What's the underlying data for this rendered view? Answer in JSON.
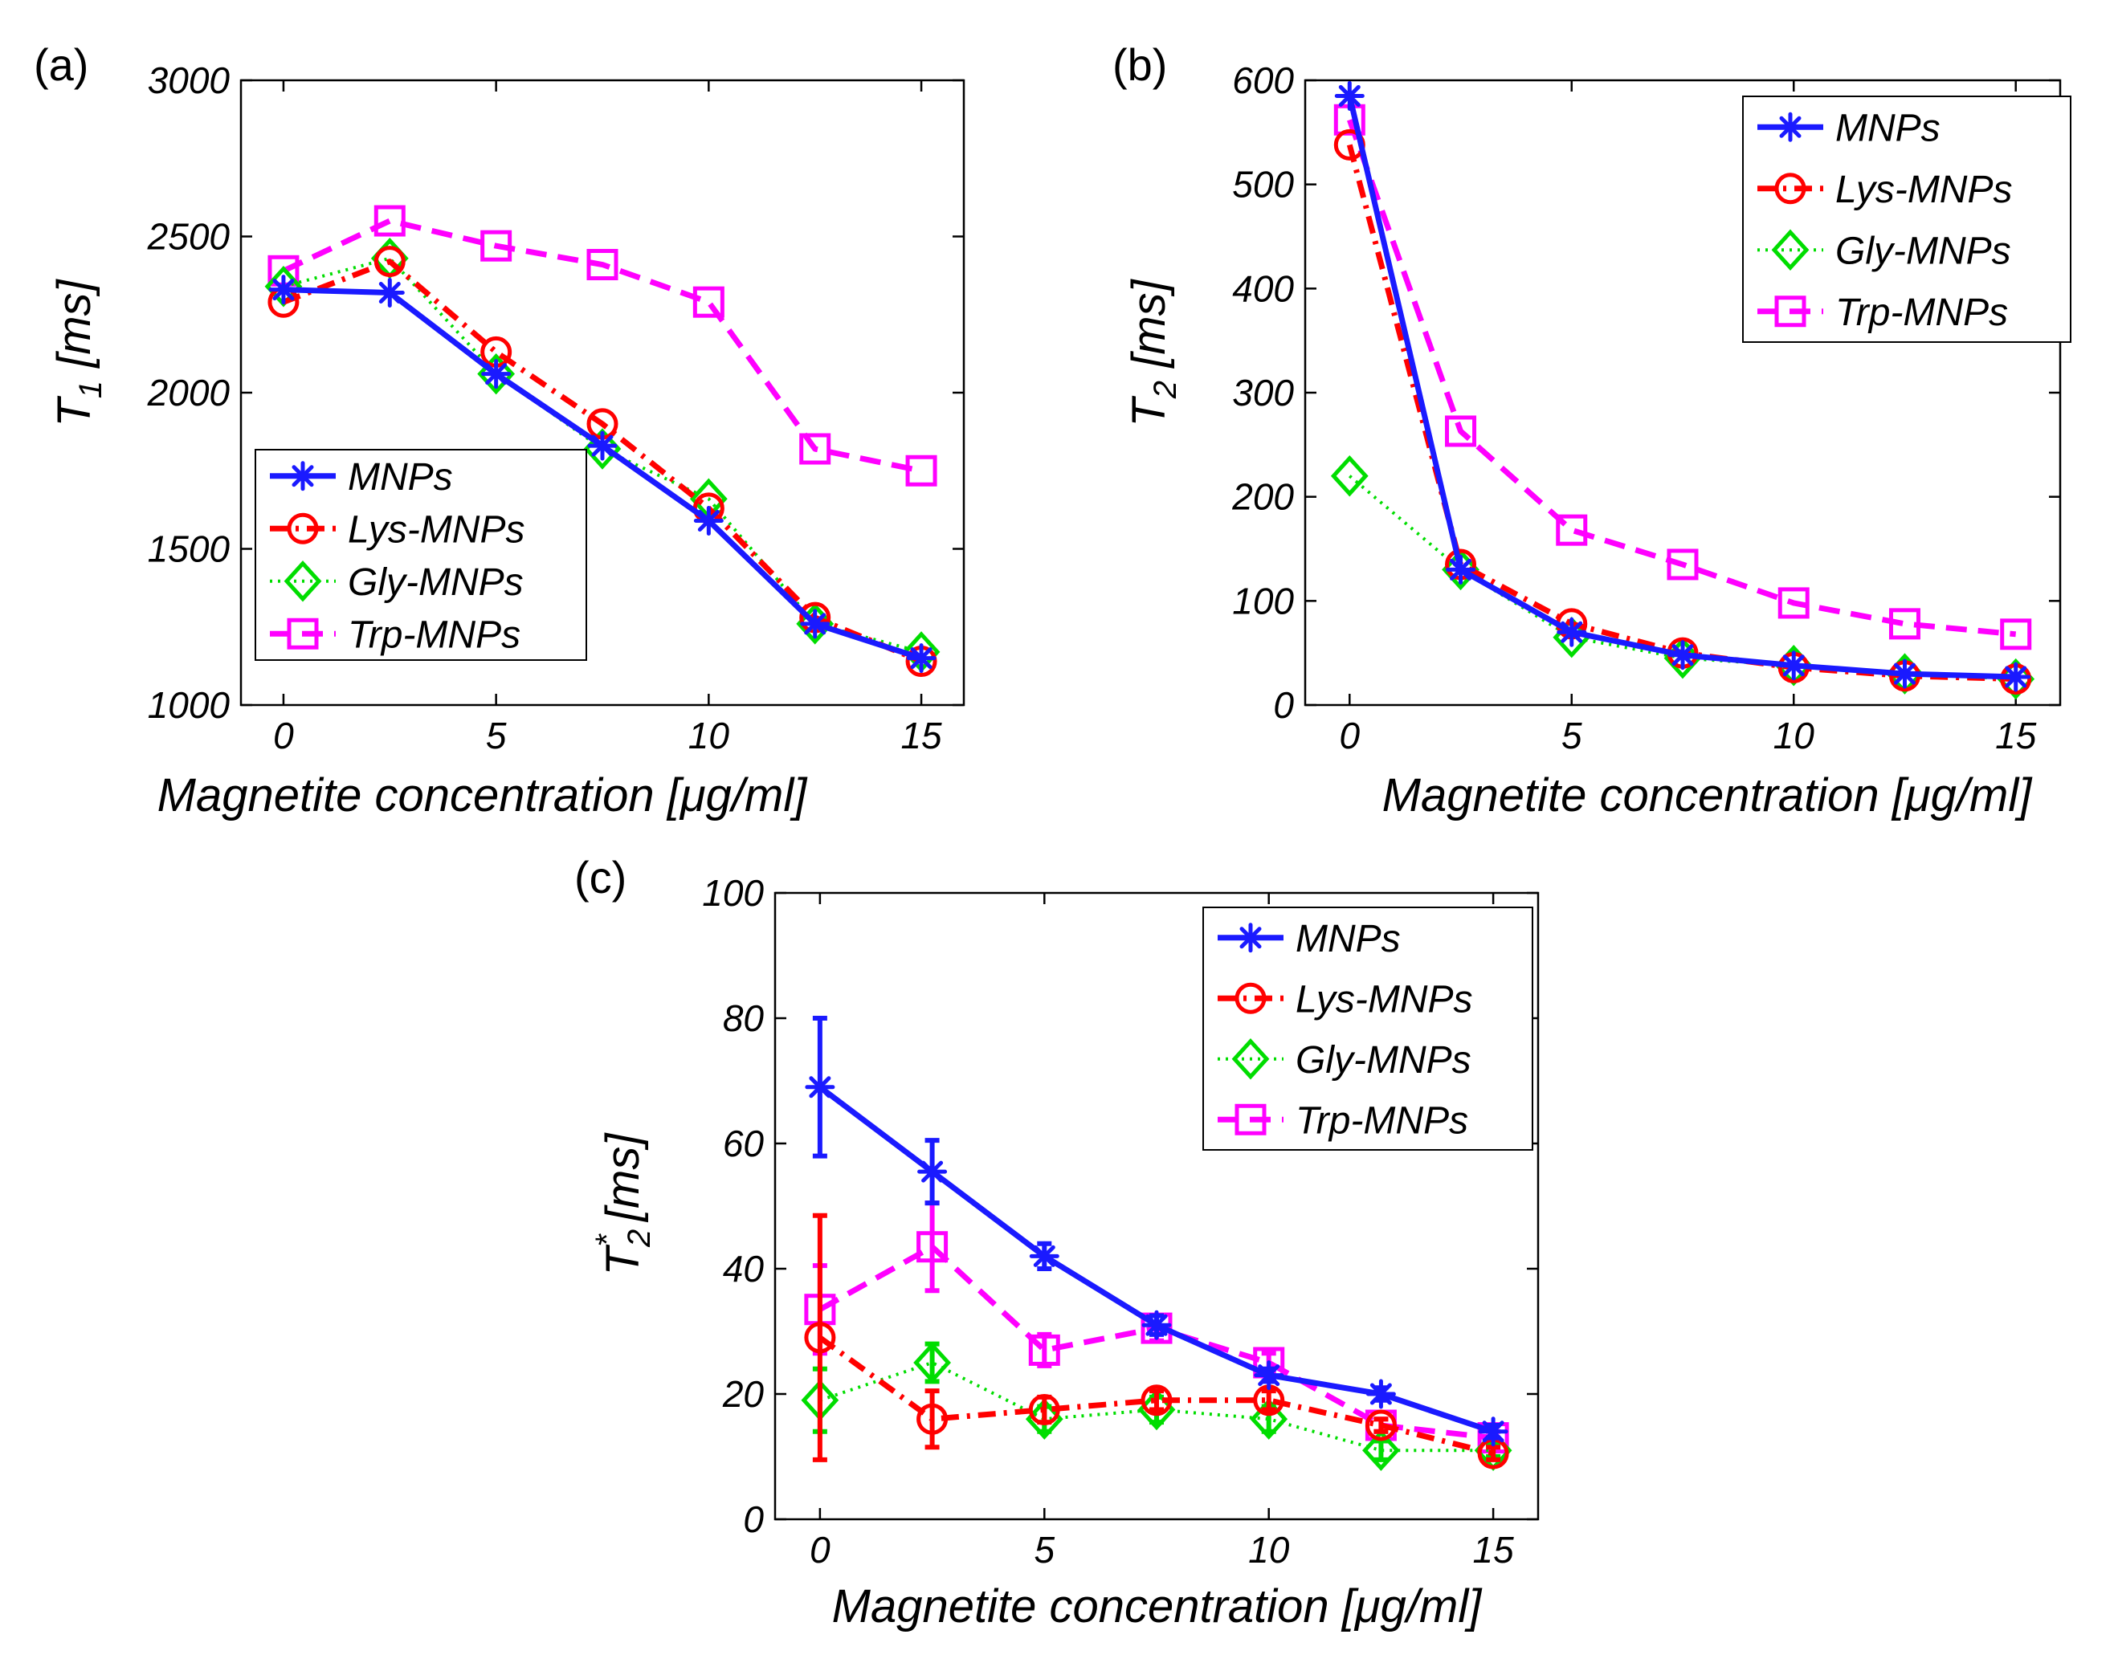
{
  "colors": {
    "MNPs": "#1a1aff",
    "Lys-MNPs": "#ff0000",
    "Gly-MNPs": "#00dd00",
    "Trp-MNPs": "#ff00ff"
  },
  "chart_data": [
    {
      "panel": "(a)",
      "type": "line",
      "xlabel": "Magnetite concentration [μg/ml]",
      "ylabel_main": "T",
      "ylabel_sub": "1",
      "ylabel_sup": "",
      "ylabel_unit": "[ms]",
      "xlim": [
        -1,
        16
      ],
      "ylim": [
        1000,
        3000
      ],
      "xticks": [
        0,
        5,
        10,
        15
      ],
      "yticks": [
        1000,
        1500,
        2000,
        2500,
        3000
      ],
      "legend_position": "bottom-left",
      "x": [
        0,
        2.5,
        5,
        7.5,
        10,
        12.5,
        15
      ],
      "series": [
        {
          "name": "MNPs",
          "marker": "asterisk",
          "values": [
            2330,
            2320,
            2060,
            1830,
            1590,
            1260,
            1150
          ]
        },
        {
          "name": "Lys-MNPs",
          "marker": "circle",
          "values": [
            2290,
            2420,
            2130,
            1900,
            1630,
            1280,
            1140
          ]
        },
        {
          "name": "Gly-MNPs",
          "marker": "diamond",
          "values": [
            2340,
            2430,
            2060,
            1820,
            1660,
            1260,
            1170
          ]
        },
        {
          "name": "Trp-MNPs",
          "marker": "square",
          "values": [
            2390,
            2550,
            2470,
            2410,
            2290,
            1820,
            1750
          ]
        }
      ]
    },
    {
      "panel": "(b)",
      "type": "line",
      "xlabel": "Magnetite concentration [μg/ml]",
      "ylabel_main": "T",
      "ylabel_sub": "2",
      "ylabel_sup": "",
      "ylabel_unit": "[ms]",
      "xlim": [
        -1,
        16
      ],
      "ylim": [
        0,
        600
      ],
      "xticks": [
        0,
        5,
        10,
        15
      ],
      "yticks": [
        0,
        100,
        200,
        300,
        400,
        500,
        600
      ],
      "legend_position": "top-right",
      "x": [
        0,
        2.5,
        5,
        7.5,
        10,
        12.5,
        15
      ],
      "series": [
        {
          "name": "MNPs",
          "marker": "asterisk",
          "values": [
            585,
            130,
            70,
            48,
            38,
            30,
            27
          ]
        },
        {
          "name": "Lys-MNPs",
          "marker": "circle",
          "values": [
            538,
            135,
            78,
            50,
            36,
            28,
            25
          ]
        },
        {
          "name": "Gly-MNPs",
          "marker": "diamond",
          "values": [
            220,
            130,
            65,
            45,
            38,
            30,
            25
          ]
        },
        {
          "name": "Trp-MNPs",
          "marker": "square",
          "values": [
            562,
            263,
            168,
            135,
            98,
            78,
            68
          ]
        }
      ]
    },
    {
      "panel": "(c)",
      "type": "line",
      "xlabel": "Magnetite concentration [μg/ml]",
      "ylabel_main": "T",
      "ylabel_sub": "2",
      "ylabel_sup": "*",
      "ylabel_unit": "[ms]",
      "xlim": [
        -1,
        16
      ],
      "ylim": [
        0,
        100
      ],
      "xticks": [
        0,
        5,
        10,
        15
      ],
      "yticks": [
        0,
        20,
        40,
        60,
        80,
        100
      ],
      "legend_position": "top-right",
      "x": [
        0,
        2.5,
        5,
        7.5,
        10,
        12.5,
        15
      ],
      "series": [
        {
          "name": "MNPs",
          "marker": "asterisk",
          "values": [
            69,
            55.5,
            42,
            31,
            23,
            20,
            14
          ],
          "errors": [
            11,
            5,
            2,
            1.5,
            1,
            1,
            1
          ]
        },
        {
          "name": "Lys-MNPs",
          "marker": "circle",
          "values": [
            29,
            16,
            17.5,
            19,
            19,
            15,
            10.5
          ],
          "errors": [
            19.5,
            4.5,
            2,
            1.5,
            1.5,
            1,
            1
          ]
        },
        {
          "name": "Gly-MNPs",
          "marker": "diamond",
          "values": [
            19,
            25,
            16,
            17.5,
            16,
            11,
            11
          ],
          "errors": [
            5,
            3,
            2,
            2,
            2,
            1.5,
            1
          ]
        },
        {
          "name": "Trp-MNPs",
          "marker": "square",
          "values": [
            33.5,
            43.5,
            27,
            30.5,
            25,
            15,
            13
          ],
          "errors": [
            7,
            7,
            2.5,
            2,
            1.5,
            1,
            1
          ]
        }
      ]
    }
  ]
}
